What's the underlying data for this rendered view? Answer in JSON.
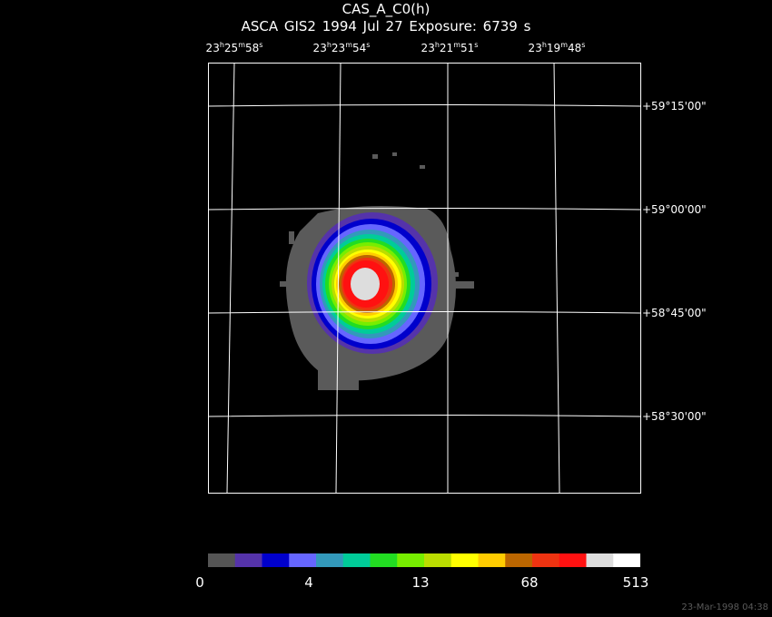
{
  "header": {
    "title": "CAS_A_C0(h)",
    "subtitle": "ASCA GIS2   1994 Jul 27    Exposure:  6739 s"
  },
  "axes": {
    "ra_labels": [
      {
        "h": "23",
        "m": "25",
        "s": "58"
      },
      {
        "h": "23",
        "m": "23",
        "s": "54"
      },
      {
        "h": "23",
        "m": "21",
        "s": "51"
      },
      {
        "h": "23",
        "m": "19",
        "s": "48"
      }
    ],
    "dec_labels": [
      "+59°15'00\"",
      "+59°00'00\"",
      "+58°45'00\"",
      "+58°30'00\""
    ]
  },
  "colorbar": {
    "colors": [
      "#555555",
      "#5533aa",
      "#0000cc",
      "#6666ff",
      "#3399bb",
      "#00cc99",
      "#22dd22",
      "#77ee00",
      "#bbdd00",
      "#ffff00",
      "#ffcc00",
      "#bb6600",
      "#ee3311",
      "#ff1111",
      "#dddddd",
      "#ffffff"
    ],
    "labels": [
      "0",
      "4",
      "13",
      "68",
      "513"
    ]
  },
  "footer": {
    "timestamp": "23-Mar-1998 04:38"
  }
}
